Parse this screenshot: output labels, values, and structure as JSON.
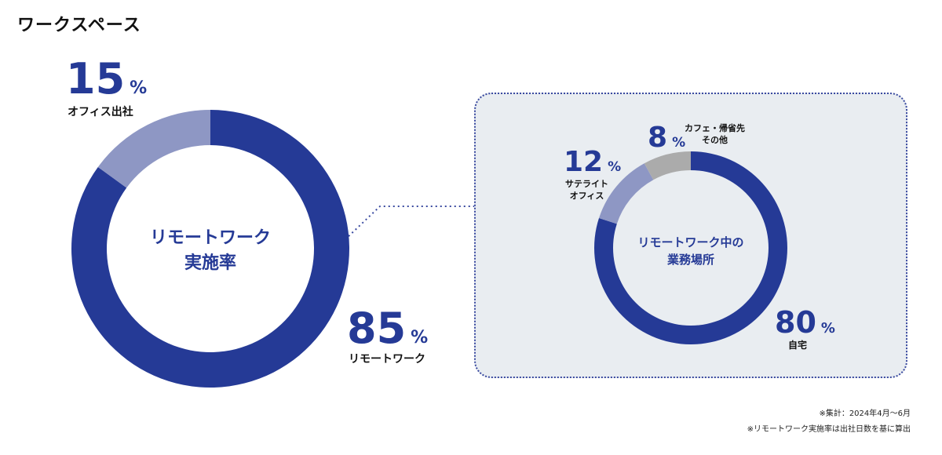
{
  "page": {
    "title": "ワークスペース"
  },
  "chart_data": [
    {
      "type": "pie",
      "center_label": [
        "リモートワーク",
        "実施率"
      ],
      "slices": [
        {
          "label": "リモートワーク",
          "value": 85,
          "unit": "%",
          "color": "#253a96"
        },
        {
          "label": "オフィス出社",
          "value": 15,
          "unit": "%",
          "color": "#8e97c4"
        }
      ]
    },
    {
      "type": "pie",
      "center_label": [
        "リモートワーク中の",
        "業務場所"
      ],
      "slices": [
        {
          "label": "自宅",
          "value": 80,
          "unit": "%",
          "color": "#253a96"
        },
        {
          "label": "サテライトオフィス",
          "label_lines": [
            "サテライト",
            "オフィス"
          ],
          "value": 12,
          "unit": "%",
          "color": "#8e97c4"
        },
        {
          "label": "カフェ・帰省先その他",
          "label_lines": [
            "カフェ・帰省先",
            "その他"
          ],
          "value": 8,
          "unit": "%",
          "color": "#ababab"
        }
      ]
    }
  ],
  "footnotes": [
    "※集計：2024年4月〜6月",
    "※リモートワーク実施率は出社日数を基に算出"
  ]
}
